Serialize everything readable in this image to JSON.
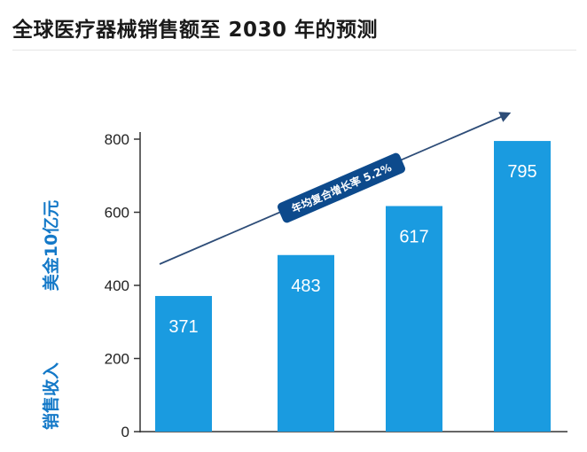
{
  "title": "全球医疗器械销售额至 2030 年的预测",
  "chart_data": {
    "type": "bar",
    "categories": [
      "",
      "",
      "",
      ""
    ],
    "values": [
      371,
      483,
      617,
      795
    ],
    "title": "全球医疗器械销售额至 2030 年的预测",
    "ylabel": "销售收入   美金10亿元",
    "ylabel_parts": [
      "销售收入",
      "美金10亿元"
    ],
    "ylim": [
      0,
      800
    ],
    "yticks": [
      0,
      200,
      400,
      600,
      800
    ],
    "ytick_labels": [
      "0",
      "200",
      "400",
      "600",
      "800"
    ],
    "grid": false,
    "legend": "none",
    "bar_color": "#1a9be0",
    "annotation": "年均复合增长率 5.2%",
    "annotation_color": "#0d4a8c",
    "arrow_color": "#2e4d78"
  }
}
